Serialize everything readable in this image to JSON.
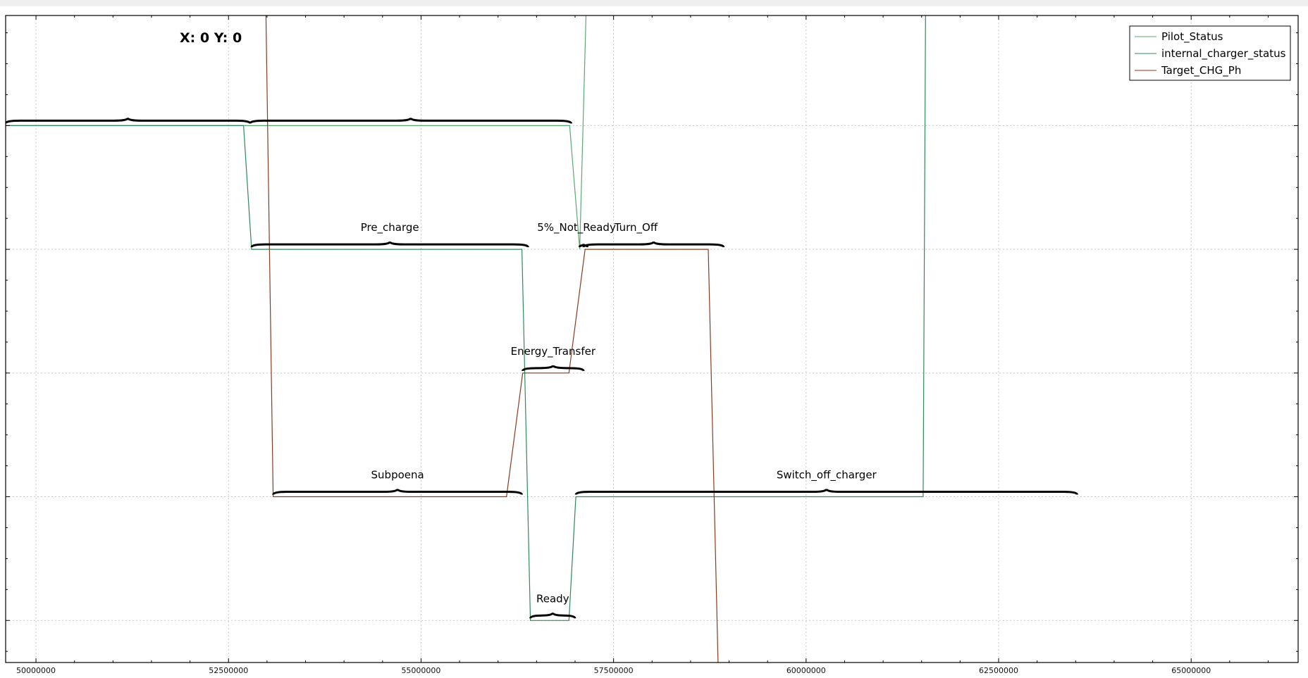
{
  "coord_readout": "X: 0  Y: 0",
  "chart_data": {
    "type": "line",
    "title": "",
    "xlabel": "",
    "ylabel": "",
    "xlim": [
      49606000,
      66389000
    ],
    "ylim": [
      0.66,
      5.89
    ],
    "grid": true,
    "legend_position": "top-right",
    "x_ticks": [
      50000000,
      52500000,
      55000000,
      57500000,
      60000000,
      62500000,
      65000000
    ],
    "x_tick_labels": [
      "50000000",
      "52500000",
      "55000000",
      "57500000",
      "60000000",
      "62500000",
      "65000000"
    ],
    "y_gridlines": [
      1,
      2,
      3,
      4,
      5
    ],
    "series": [
      {
        "name": "Pilot_Status",
        "color": "#5aaa72",
        "points": [
          [
            49606000,
            5
          ],
          [
            56930000,
            5
          ],
          [
            57060000,
            4
          ],
          [
            57190000,
            7
          ]
        ]
      },
      {
        "name": "internal_charger_status",
        "color": "#2e8b57",
        "points": [
          [
            49606000,
            5
          ],
          [
            52695000,
            5
          ],
          [
            52800000,
            4
          ],
          [
            56310000,
            4
          ],
          [
            56420000,
            1
          ],
          [
            56920000,
            1
          ],
          [
            57010000,
            2
          ],
          [
            61520000,
            2
          ],
          [
            61560000,
            7
          ]
        ]
      },
      {
        "name": "Target_CHG_Ph",
        "color": "#8b3a1e",
        "points": [
          [
            52960000,
            7
          ],
          [
            53080000,
            2
          ],
          [
            56110000,
            2
          ],
          [
            56320000,
            3
          ],
          [
            56920000,
            3
          ],
          [
            57130000,
            4
          ],
          [
            58730000,
            4
          ],
          [
            58920000,
            -1
          ]
        ]
      }
    ],
    "annotations": [
      {
        "label": "",
        "x": [
          49606000,
          52780000
        ],
        "y": 5
      },
      {
        "label": "",
        "x": [
          52780000,
          56950000
        ],
        "y": 5
      },
      {
        "label": "Pre_charge",
        "x": [
          52800000,
          56390000
        ],
        "y": 4
      },
      {
        "label": "5%_Not_Ready",
        "x": [
          57060000,
          57160000
        ],
        "y": 4
      },
      {
        "label": "Turn_Off",
        "x": [
          57110000,
          58930000
        ],
        "y": 4
      },
      {
        "label": "Energy_Transfer",
        "x": [
          56320000,
          57110000
        ],
        "y": 3
      },
      {
        "label": "Subpoena",
        "x": [
          53080000,
          56310000
        ],
        "y": 2
      },
      {
        "label": "Switch_off_charger",
        "x": [
          57010000,
          63520000
        ],
        "y": 2
      },
      {
        "label": "Ready",
        "x": [
          56420000,
          57000000
        ],
        "y": 1
      }
    ]
  }
}
